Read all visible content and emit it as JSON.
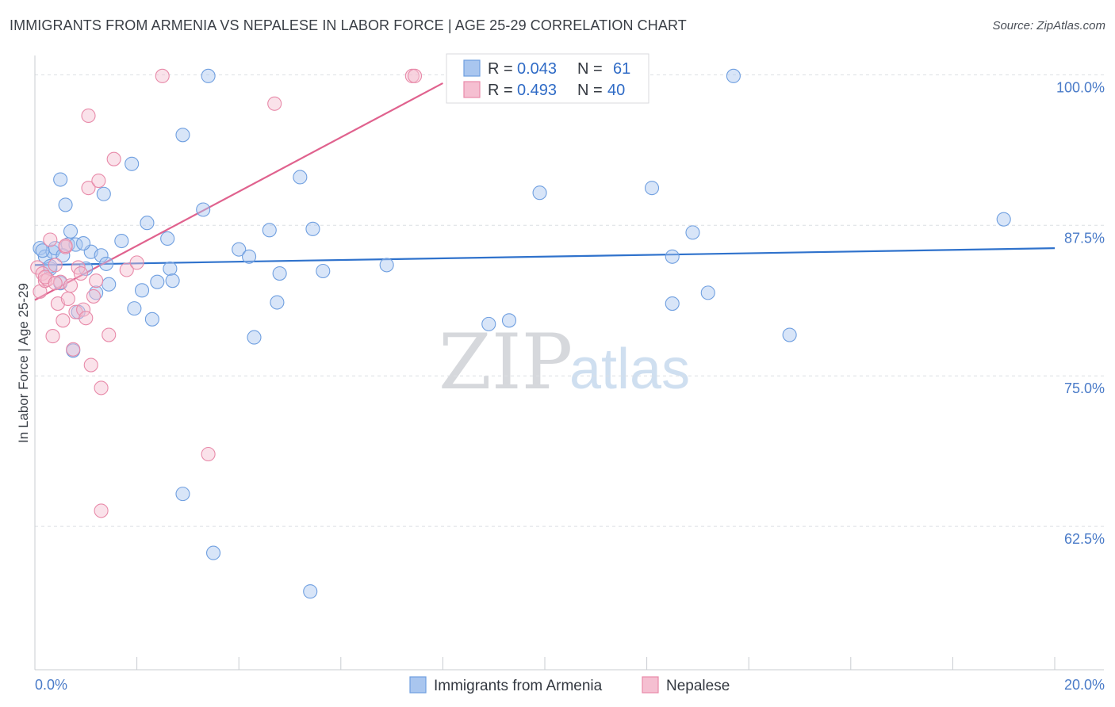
{
  "title": "IMMIGRANTS FROM ARMENIA VS NEPALESE IN LABOR FORCE | AGE 25-29 CORRELATION CHART",
  "source": "Source: ZipAtlas.com",
  "watermark": {
    "zip": "ZIP",
    "atlas": "atlas"
  },
  "colors": {
    "blue": "#6f9fe0",
    "blue_fill": "#a9c6ef",
    "pink": "#e88aa9",
    "pink_fill": "#f5bfd1",
    "blue_line": "#2f72cc",
    "pink_line": "#e0628e",
    "tick_text": "#4a7bc8"
  },
  "legend": {
    "r_label": "R =",
    "n_label": "N =",
    "rows": [
      {
        "r": "0.043",
        "n": "61"
      },
      {
        "r": "0.493",
        "n": "40"
      }
    ]
  },
  "chart_data": {
    "type": "scatter",
    "title": "IMMIGRANTS FROM ARMENIA VS NEPALESE IN LABOR FORCE | AGE 25-29 CORRELATION CHART",
    "xlabel": "",
    "ylabel": "In Labor Force | Age 25-29",
    "xlim": [
      0,
      20
    ],
    "ylim": [
      50.6,
      101.6
    ],
    "x_tick_labels": [
      "0.0%",
      "20.0%"
    ],
    "y_ticks": [
      62.5,
      75.0,
      87.5,
      100.0
    ],
    "y_tick_labels": [
      "62.5%",
      "75.0%",
      "87.5%",
      "100.0%"
    ],
    "series": [
      {
        "name": "Immigrants from Armenia",
        "trend": [
          [
            0,
            84.2
          ],
          [
            20,
            85.6
          ]
        ],
        "points": [
          [
            0.1,
            85.6
          ],
          [
            0.2,
            84.9
          ],
          [
            0.3,
            83.9
          ],
          [
            0.35,
            85.3
          ],
          [
            0.4,
            85.6
          ],
          [
            0.5,
            82.7
          ],
          [
            0.5,
            91.3
          ],
          [
            0.6,
            89.2
          ],
          [
            0.65,
            85.9
          ],
          [
            0.7,
            87.0
          ],
          [
            0.75,
            77.1
          ],
          [
            0.8,
            85.9
          ],
          [
            0.85,
            80.3
          ],
          [
            1.0,
            83.9
          ],
          [
            1.1,
            85.3
          ],
          [
            1.2,
            81.9
          ],
          [
            1.3,
            85.0
          ],
          [
            1.35,
            90.1
          ],
          [
            1.4,
            84.3
          ],
          [
            1.45,
            82.6
          ],
          [
            1.7,
            86.2
          ],
          [
            1.9,
            92.6
          ],
          [
            1.95,
            80.6
          ],
          [
            2.1,
            82.1
          ],
          [
            2.2,
            87.7
          ],
          [
            2.3,
            79.7
          ],
          [
            2.4,
            82.8
          ],
          [
            2.6,
            86.4
          ],
          [
            2.65,
            83.9
          ],
          [
            2.7,
            82.9
          ],
          [
            2.9,
            65.2
          ],
          [
            2.9,
            95.0
          ],
          [
            3.3,
            88.8
          ],
          [
            3.4,
            99.9
          ],
          [
            3.5,
            60.3
          ],
          [
            4.0,
            85.5
          ],
          [
            4.2,
            84.9
          ],
          [
            4.3,
            78.2
          ],
          [
            4.6,
            87.1
          ],
          [
            4.75,
            81.1
          ],
          [
            4.8,
            83.5
          ],
          [
            5.2,
            91.5
          ],
          [
            5.4,
            57.1
          ],
          [
            5.45,
            87.2
          ],
          [
            5.65,
            83.7
          ],
          [
            6.9,
            84.2
          ],
          [
            8.9,
            79.3
          ],
          [
            9.3,
            79.6
          ],
          [
            9.9,
            90.2
          ],
          [
            12.1,
            90.6
          ],
          [
            12.5,
            81.0
          ],
          [
            12.5,
            84.9
          ],
          [
            12.9,
            86.9
          ],
          [
            13.2,
            81.9
          ],
          [
            13.7,
            99.9
          ],
          [
            14.8,
            78.4
          ],
          [
            19.0,
            88.0
          ],
          [
            0.15,
            85.4
          ],
          [
            0.55,
            85.0
          ],
          [
            0.95,
            86.0
          ],
          [
            0.3,
            84.1
          ]
        ]
      },
      {
        "name": "Nepalese",
        "trend": [
          [
            0,
            81.3
          ],
          [
            8.0,
            99.3
          ]
        ],
        "points": [
          [
            0.05,
            84.0
          ],
          [
            0.1,
            82.0
          ],
          [
            0.15,
            83.5
          ],
          [
            0.2,
            82.9
          ],
          [
            0.25,
            83.0
          ],
          [
            0.3,
            86.3
          ],
          [
            0.35,
            78.3
          ],
          [
            0.4,
            84.2
          ],
          [
            0.45,
            81.0
          ],
          [
            0.5,
            82.8
          ],
          [
            0.55,
            79.6
          ],
          [
            0.6,
            85.7
          ],
          [
            0.65,
            81.4
          ],
          [
            0.7,
            82.5
          ],
          [
            0.75,
            77.2
          ],
          [
            0.8,
            80.3
          ],
          [
            0.85,
            84.0
          ],
          [
            0.9,
            83.5
          ],
          [
            0.95,
            80.5
          ],
          [
            1.0,
            79.8
          ],
          [
            1.05,
            90.6
          ],
          [
            1.15,
            81.6
          ],
          [
            1.05,
            96.6
          ],
          [
            1.1,
            75.9
          ],
          [
            1.2,
            82.9
          ],
          [
            1.25,
            91.2
          ],
          [
            1.3,
            63.8
          ],
          [
            1.3,
            74.0
          ],
          [
            1.45,
            78.4
          ],
          [
            1.55,
            93.0
          ],
          [
            1.8,
            83.8
          ],
          [
            2.0,
            84.4
          ],
          [
            2.5,
            99.9
          ],
          [
            3.4,
            68.5
          ],
          [
            4.7,
            97.6
          ],
          [
            7.4,
            99.9
          ],
          [
            7.45,
            99.9
          ],
          [
            0.6,
            85.8
          ],
          [
            0.2,
            83.2
          ],
          [
            0.4,
            82.7
          ]
        ]
      }
    ]
  },
  "bottom_legend": [
    "Immigrants from Armenia",
    "Nepalese"
  ]
}
